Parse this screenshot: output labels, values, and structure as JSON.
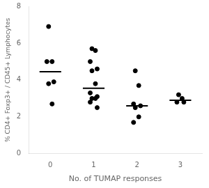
{
  "chart_data": {
    "type": "scatter",
    "xlabel": "No. of TUMAP responses",
    "ylabel": "% CD4+ Foxp3+ / CD45+ Lymphocytes",
    "xlim": [
      -0.5,
      3.5
    ],
    "xticks": [
      0,
      1,
      2,
      3
    ],
    "ylim": [
      0,
      8
    ],
    "yticks": [
      0,
      2,
      4,
      6,
      8
    ],
    "color": "#000000",
    "grid": false,
    "series": [
      {
        "x": 0,
        "values": [
          6.9,
          5.0,
          5.0,
          3.9,
          3.8,
          2.7
        ],
        "median": 4.45
      },
      {
        "x": 1,
        "values": [
          5.7,
          5.6,
          5.0,
          4.6,
          4.5,
          3.8,
          3.3,
          3.1,
          3.0,
          3.0,
          2.8,
          2.5
        ],
        "median": 3.55
      },
      {
        "x": 2,
        "values": [
          4.5,
          3.7,
          2.7,
          2.6,
          2.5,
          2.0,
          1.7
        ],
        "median": 2.6
      },
      {
        "x": 3,
        "values": [
          3.2,
          3.0,
          2.8,
          2.8
        ],
        "median": 2.9
      }
    ]
  }
}
